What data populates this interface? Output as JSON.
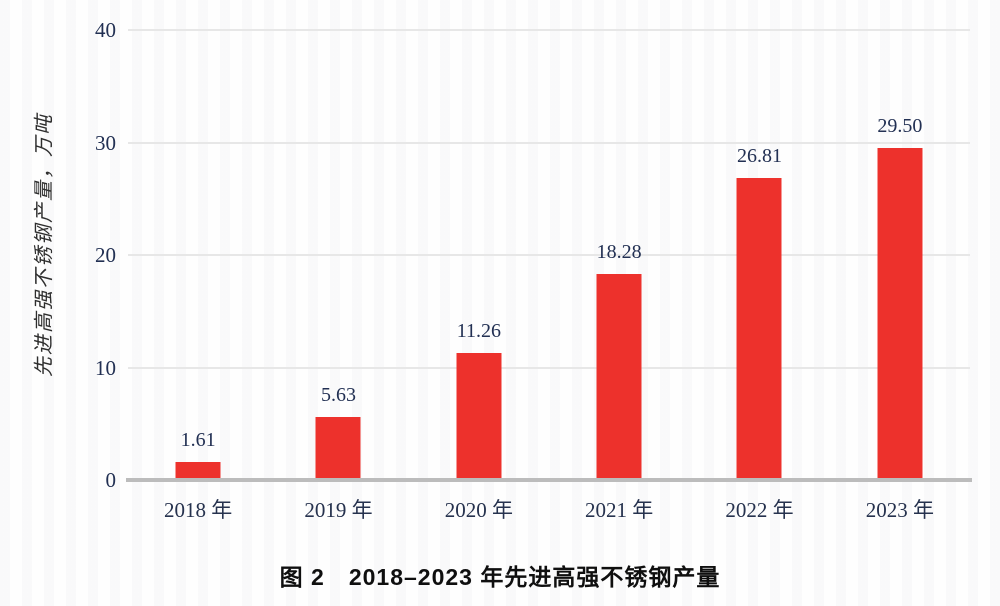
{
  "figure": {
    "caption": "图 2　2018–2023 年先进高强不锈钢产量"
  },
  "chart_data": {
    "type": "bar",
    "title": "图 2　2018–2023 年先进高强不锈钢产量",
    "categories": [
      "2018 年",
      "2019 年",
      "2020 年",
      "2021 年",
      "2022 年",
      "2023 年"
    ],
    "values": [
      1.61,
      5.63,
      11.26,
      18.28,
      26.81,
      29.5
    ],
    "value_labels": [
      "1.61",
      "5.63",
      "11.26",
      "18.28",
      "26.81",
      "29.50"
    ],
    "xlabel": "",
    "ylabel": "先进高强不锈钢产量，万吨",
    "ylim": [
      0,
      40
    ],
    "yticks": [
      0,
      10,
      20,
      30,
      40
    ],
    "grid": "horizontal-only",
    "legend_position": "none",
    "bar_color": "#ed312c",
    "text_color": "#223053",
    "grid_color": "#e7e7e7",
    "axis_line_color": "#bcbcbc"
  }
}
